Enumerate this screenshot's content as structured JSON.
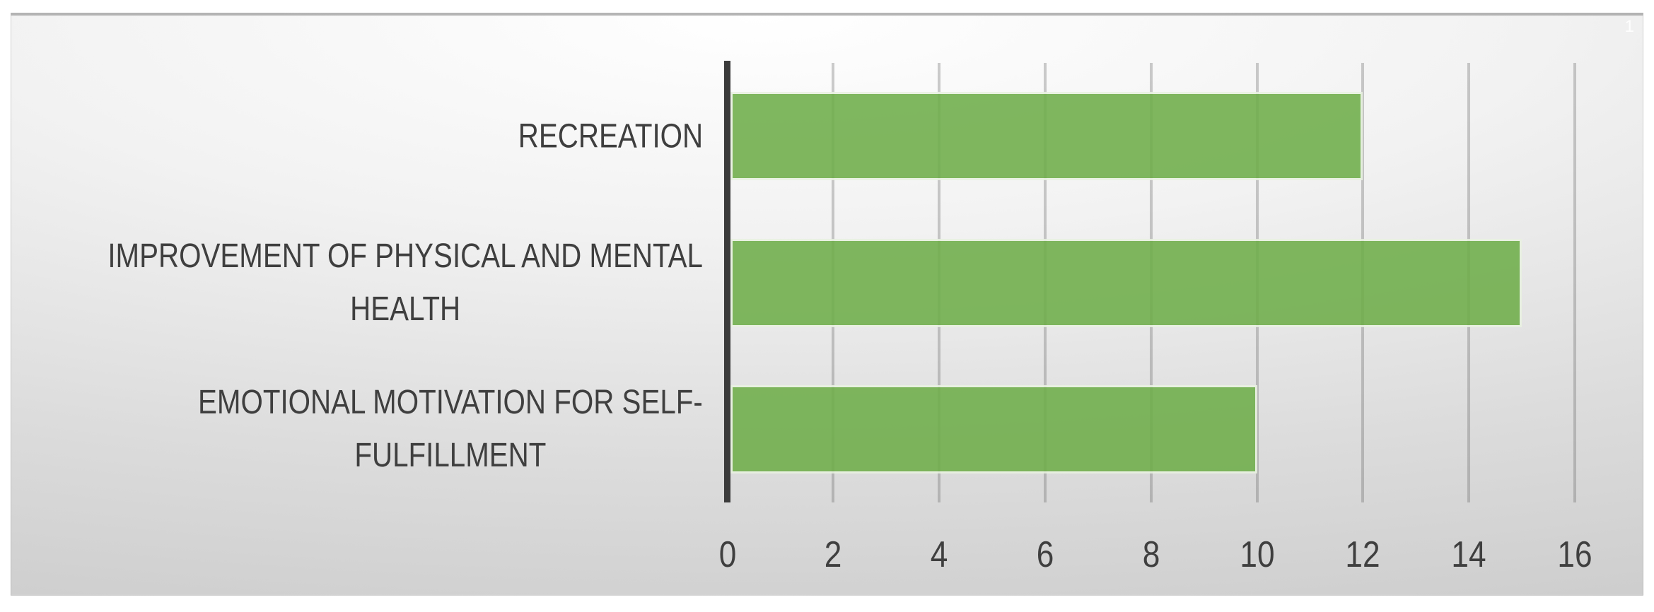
{
  "page": {
    "slide_number": "1"
  },
  "chart_data": {
    "type": "bar",
    "orientation": "horizontal",
    "title": "",
    "xlabel": "",
    "ylabel": "",
    "categories": [
      "RECREATION",
      "IMPROVEMENT OF PHYSICAL AND MENTAL HEALTH",
      "EMOTIONAL MOTIVATION FOR SELF-FULFILLMENT"
    ],
    "category_lines": [
      [
        "RECREATION"
      ],
      [
        "IMPROVEMENT OF PHYSICAL AND MENTAL",
        "HEALTH"
      ],
      [
        "EMOTIONAL MOTIVATION FOR SELF-",
        "FULFILLMENT"
      ]
    ],
    "values": [
      12,
      15,
      10
    ],
    "xlim": [
      0,
      16
    ],
    "xticks": [
      0,
      2,
      4,
      6,
      8,
      10,
      12,
      14,
      16
    ],
    "grid": true,
    "legend": false,
    "colors": {
      "bar_fill": "#6fae4a",
      "bar_border": "#e9f2e1",
      "axis_line": "#3b3b3b",
      "gridline_gray": "#a6a6a6",
      "text": "#3f3f3f"
    }
  }
}
